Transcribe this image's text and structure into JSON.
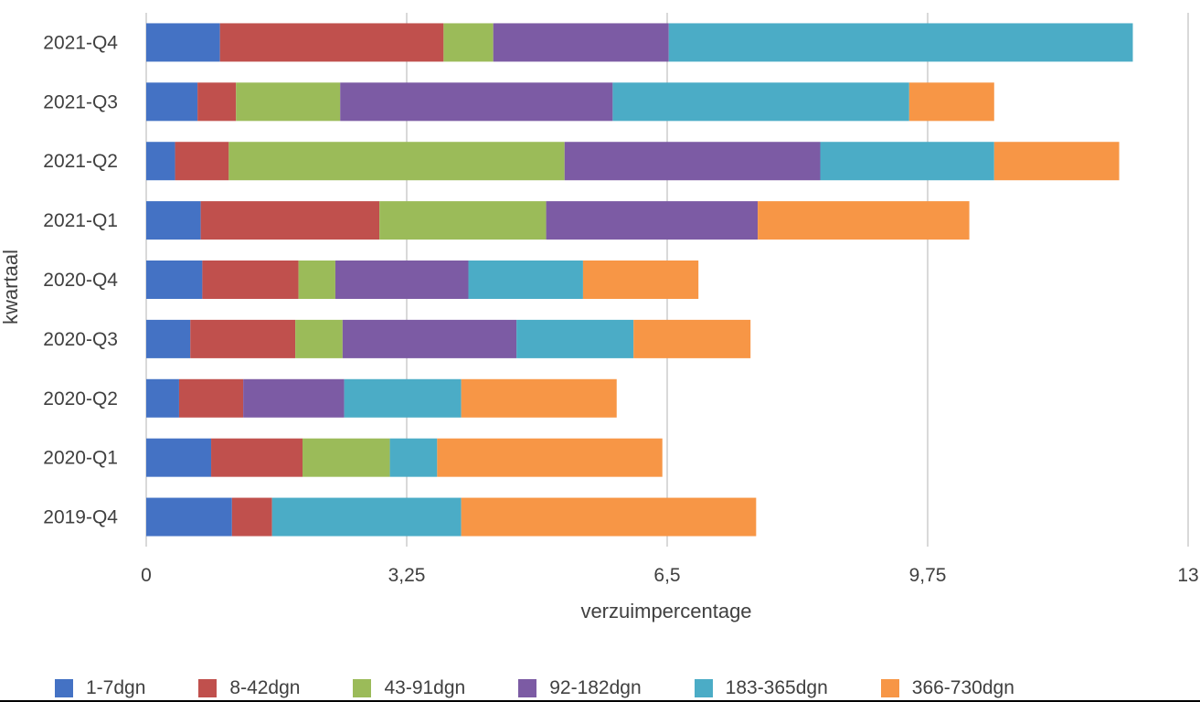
{
  "chart_data": {
    "type": "bar",
    "orientation": "horizontal",
    "stacked": true,
    "xlabel": "verzuimpercentage",
    "ylabel": "kwartaal",
    "xlim": [
      0,
      13
    ],
    "x_ticks": [
      "0",
      "3,25",
      "6,5",
      "9,75",
      "13"
    ],
    "x_tick_values": [
      0,
      3.25,
      6.5,
      9.75,
      13
    ],
    "grid": "vertical",
    "legend_position": "bottom",
    "categories": [
      "2021-Q4",
      "2021-Q3",
      "2021-Q2",
      "2021-Q1",
      "2020-Q4",
      "2020-Q3",
      "2020-Q2",
      "2020-Q1",
      "2019-Q4"
    ],
    "series": [
      {
        "name": "1-7dgn",
        "color": "#4472C4",
        "values": [
          0.92,
          0.64,
          0.36,
          0.68,
          0.7,
          0.55,
          0.41,
          0.81,
          1.07
        ]
      },
      {
        "name": "8-42dgn",
        "color": "#C0504D",
        "values": [
          2.79,
          0.48,
          0.67,
          2.23,
          1.2,
          1.31,
          0.8,
          1.14,
          0.5
        ]
      },
      {
        "name": "43-91dgn",
        "color": "#9BBB59",
        "values": [
          0.62,
          1.3,
          4.19,
          2.08,
          0.46,
          0.59,
          0.0,
          1.09,
          0.0
        ]
      },
      {
        "name": "92-182dgn",
        "color": "#7C5BA4",
        "values": [
          2.19,
          3.4,
          3.19,
          2.64,
          1.66,
          2.17,
          1.26,
          0.0,
          0.0
        ]
      },
      {
        "name": "183-365dgn",
        "color": "#4BACC6",
        "values": [
          5.79,
          3.7,
          2.17,
          0.0,
          1.43,
          1.46,
          1.46,
          0.59,
          2.36
        ]
      },
      {
        "name": "366-730dgn",
        "color": "#F79646",
        "values": [
          0.0,
          1.06,
          1.56,
          2.64,
          1.44,
          1.46,
          1.94,
          2.81,
          3.68
        ]
      }
    ]
  }
}
